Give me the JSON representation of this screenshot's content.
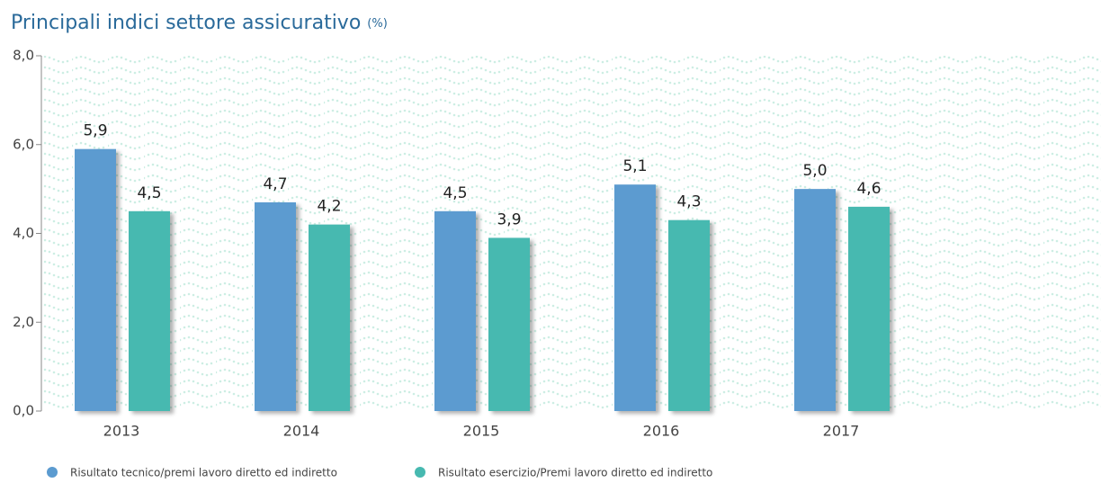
{
  "chart_data": {
    "type": "bar",
    "title": "Principali indici settore assicurativo",
    "title_unit": "(%)",
    "categories": [
      "2013",
      "2014",
      "2015",
      "2016",
      "2017"
    ],
    "series": [
      {
        "name": "Risultato tecnico/premi lavoro diretto ed indiretto",
        "color": "#5b9bd0",
        "values": [
          5.9,
          4.7,
          4.5,
          5.1,
          5.0
        ],
        "value_labels": [
          "5,9",
          "4,7",
          "4,5",
          "5,1",
          "5,0"
        ]
      },
      {
        "name": "Risultato esercizio/Premi lavoro diretto ed indiretto",
        "color": "#47b9b0",
        "values": [
          4.5,
          4.2,
          3.9,
          4.3,
          4.6
        ],
        "value_labels": [
          "4,5",
          "4,2",
          "3,9",
          "4,3",
          "4,6"
        ]
      }
    ],
    "ylim": [
      0,
      8
    ],
    "yticks": [
      {
        "value": 0,
        "label": "0,0"
      },
      {
        "value": 2,
        "label": "2,0"
      },
      {
        "value": 4,
        "label": "4,0"
      },
      {
        "value": 6,
        "label": "6,0"
      },
      {
        "value": 8,
        "label": "8,0"
      }
    ],
    "grid": false
  }
}
